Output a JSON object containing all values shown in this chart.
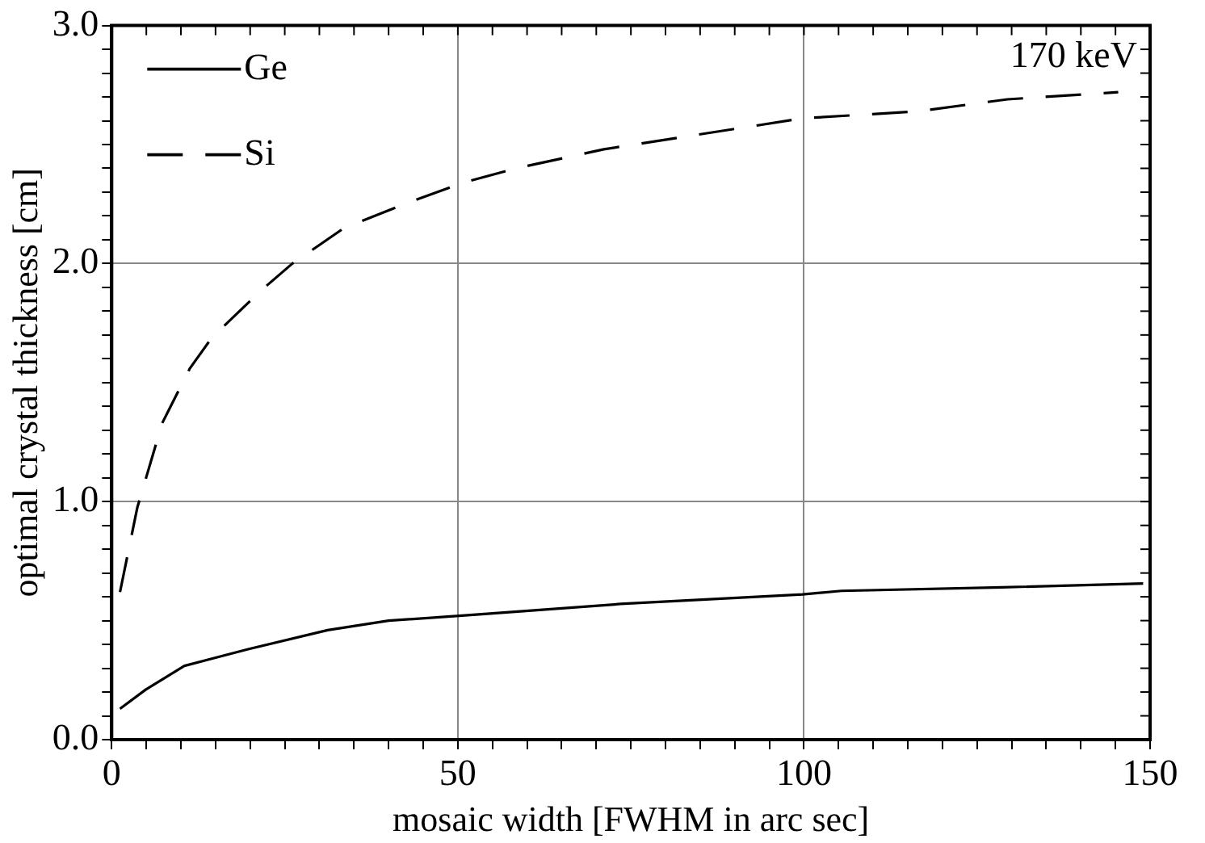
{
  "chart_data": {
    "type": "line",
    "xlabel": "mosaic width [FWHM in arc sec]",
    "ylabel": "optimal crystal thickness [cm]",
    "annotations": [
      "170 keV"
    ],
    "xlim": [
      0,
      150
    ],
    "ylim": [
      0,
      3
    ],
    "xticks": [
      0,
      {
        "value": 5,
        "label": null
      },
      {
        "value": 10,
        "label": null
      },
      {
        "value": 15,
        "label": null
      },
      {
        "value": 20,
        "label": null
      },
      {
        "value": 25,
        "label": null
      },
      {
        "value": 30,
        "label": null
      },
      {
        "value": 35,
        "label": null
      },
      {
        "value": 40,
        "label": null
      },
      {
        "value": 45,
        "label": null
      },
      50,
      {
        "value": 55,
        "label": null
      },
      {
        "value": 60,
        "label": null
      },
      {
        "value": 65,
        "label": null
      },
      {
        "value": 70,
        "label": null
      },
      {
        "value": 75,
        "label": null
      },
      {
        "value": 80,
        "label": null
      },
      {
        "value": 85,
        "label": null
      },
      {
        "value": 90,
        "label": null
      },
      {
        "value": 95,
        "label": null
      },
      100,
      {
        "value": 105,
        "label": null
      },
      {
        "value": 110,
        "label": null
      },
      {
        "value": 115,
        "label": null
      },
      {
        "value": 120,
        "label": null
      },
      {
        "value": 125,
        "label": null
      },
      {
        "value": 130,
        "label": null
      },
      {
        "value": 135,
        "label": null
      },
      {
        "value": 140,
        "label": null
      },
      {
        "value": 145,
        "label": null
      },
      150
    ],
    "yticks": [
      {
        "value": 0,
        "label": "0.0"
      },
      {
        "value": 0.1,
        "label": null
      },
      {
        "value": 0.2,
        "label": null
      },
      {
        "value": 0.3,
        "label": null
      },
      {
        "value": 0.4,
        "label": null
      },
      {
        "value": 0.5,
        "label": null
      },
      {
        "value": 0.6,
        "label": null
      },
      {
        "value": 0.7,
        "label": null
      },
      {
        "value": 0.8,
        "label": null
      },
      {
        "value": 0.9,
        "label": null
      },
      {
        "value": 1,
        "label": "1.0"
      },
      {
        "value": 1.1,
        "label": null
      },
      {
        "value": 1.2,
        "label": null
      },
      {
        "value": 1.3,
        "label": null
      },
      {
        "value": 1.4,
        "label": null
      },
      {
        "value": 1.5,
        "label": null
      },
      {
        "value": 1.6,
        "label": null
      },
      {
        "value": 1.7,
        "label": null
      },
      {
        "value": 1.8,
        "label": null
      },
      {
        "value": 1.9,
        "label": null
      },
      {
        "value": 2,
        "label": "2.0"
      },
      {
        "value": 2.1,
        "label": null
      },
      {
        "value": 2.2,
        "label": null
      },
      {
        "value": 2.3,
        "label": null
      },
      {
        "value": 2.4,
        "label": null
      },
      {
        "value": 2.5,
        "label": null
      },
      {
        "value": 2.6,
        "label": null
      },
      {
        "value": 2.7,
        "label": null
      },
      {
        "value": 2.8,
        "label": null
      },
      {
        "value": 2.9,
        "label": null
      },
      {
        "value": 3,
        "label": "3.0"
      }
    ],
    "grid": true,
    "legend": "top left",
    "marker": "none",
    "series": [
      {
        "name": "Ge",
        "color": "#000000",
        "line_style": "solid",
        "x": [
          1.2,
          4.9,
          10.5,
          19.7,
          31.2,
          40,
          50.2,
          73.5,
          99.8,
          105.4,
          128.6,
          149
        ],
        "values": [
          0.13,
          0.21,
          0.31,
          0.38,
          0.46,
          0.5,
          0.52,
          0.57,
          0.61,
          0.625,
          0.64,
          0.656
        ]
      },
      {
        "name": "Si",
        "color": "#000000",
        "line_style": "dashed",
        "x": [
          1.2,
          3.7,
          7.3,
          11.3,
          14.5,
          21.7,
          26.1,
          33.6,
          43.2,
          50.8,
          58.4,
          71.1,
          99.8,
          116.6,
          129.4,
          145.4
        ],
        "values": [
          0.62,
          0.975,
          1.33,
          1.56,
          1.69,
          1.89,
          2.0,
          2.15,
          2.26,
          2.34,
          2.4,
          2.48,
          2.61,
          2.64,
          2.69,
          2.72
        ]
      }
    ]
  }
}
